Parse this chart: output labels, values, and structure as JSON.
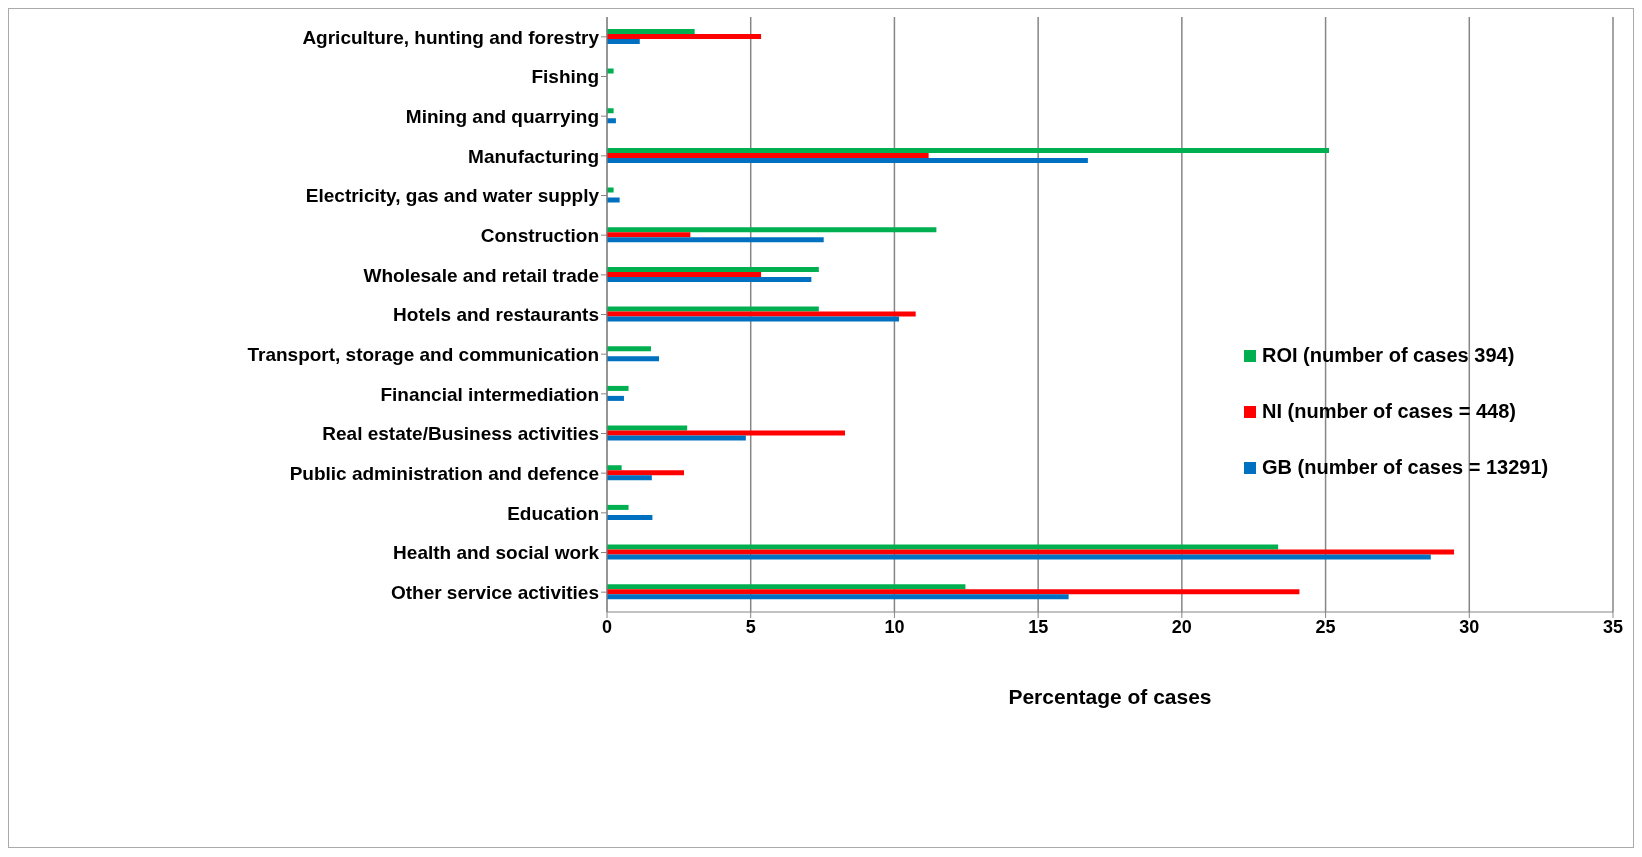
{
  "chart_data": {
    "type": "bar",
    "orientation": "horizontal",
    "xlabel": "Percentage of cases",
    "categories": [
      "Agriculture, hunting and forestry",
      "Fishing",
      "Mining and quarrying",
      "Manufacturing",
      "Electricity, gas and water supply",
      "Construction",
      "Wholesale and retail trade",
      "Hotels and restaurants",
      "Transport, storage and communication",
      "Financial intermediation",
      "Real estate/Business activities",
      "Public administration and defence",
      "Education",
      "Health and social work",
      "Other service activities"
    ],
    "series": [
      {
        "name": "ROI (number of cases 394)",
        "color": "#00b050",
        "values": [
          3.05,
          0.23,
          0.23,
          25.12,
          0.23,
          11.46,
          7.37,
          7.37,
          1.53,
          0.75,
          2.79,
          0.51,
          0.75,
          23.35,
          12.47
        ]
      },
      {
        "name": "NI (number of cases = 448)",
        "color": "#ff0000",
        "values": [
          5.36,
          0,
          0,
          11.19,
          0,
          2.9,
          5.36,
          10.74,
          0,
          0,
          8.28,
          2.68,
          0,
          29.47,
          24.09
        ]
      },
      {
        "name": "GB (number of cases = 13291)",
        "color": "#0070c0",
        "values": [
          1.14,
          0,
          0.31,
          16.73,
          0.44,
          7.54,
          7.11,
          10.16,
          1.81,
          0.59,
          4.83,
          1.56,
          1.58,
          28.66,
          16.06
        ]
      }
    ],
    "xlim": [
      0,
      35
    ],
    "xticks": [
      0,
      5,
      10,
      15,
      20,
      25,
      30,
      35
    ],
    "grid": "x",
    "legend": "right"
  }
}
